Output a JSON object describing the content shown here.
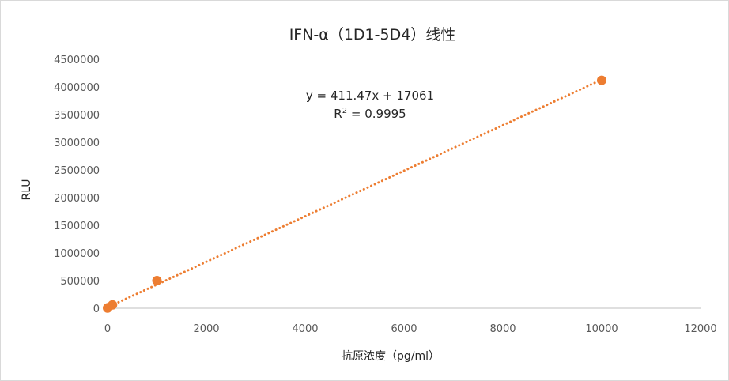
{
  "chart_data": {
    "type": "scatter",
    "title": "IFN-α（1D1-5D4）线性",
    "xlabel": "抗原浓度（pg/ml）",
    "ylabel": "RLU",
    "xlim": [
      0,
      12000
    ],
    "ylim": [
      0,
      4500000
    ],
    "x_ticks": [
      "0",
      "2000",
      "4000",
      "6000",
      "8000",
      "10000",
      "12000"
    ],
    "y_ticks": [
      "0",
      "500000",
      "1000000",
      "1500000",
      "2000000",
      "2500000",
      "3000000",
      "3500000",
      "4000000",
      "4500000"
    ],
    "series": [
      {
        "x": [
          0,
          10,
          100,
          1000,
          10000
        ],
        "y": [
          3000,
          10000,
          60000,
          500000,
          4120000
        ],
        "color": "#ed7d31"
      }
    ],
    "trendline": {
      "type": "linear",
      "slope": 411.47,
      "intercept": 17061,
      "color": "#ed7d31",
      "style": "dotted"
    },
    "annotations": {
      "equation": "y = 411.47x + 17061",
      "r2_prefix": "R",
      "r2_sup": "2",
      "r2_value": " = 0.9995"
    },
    "grid": false,
    "legend": "none"
  }
}
